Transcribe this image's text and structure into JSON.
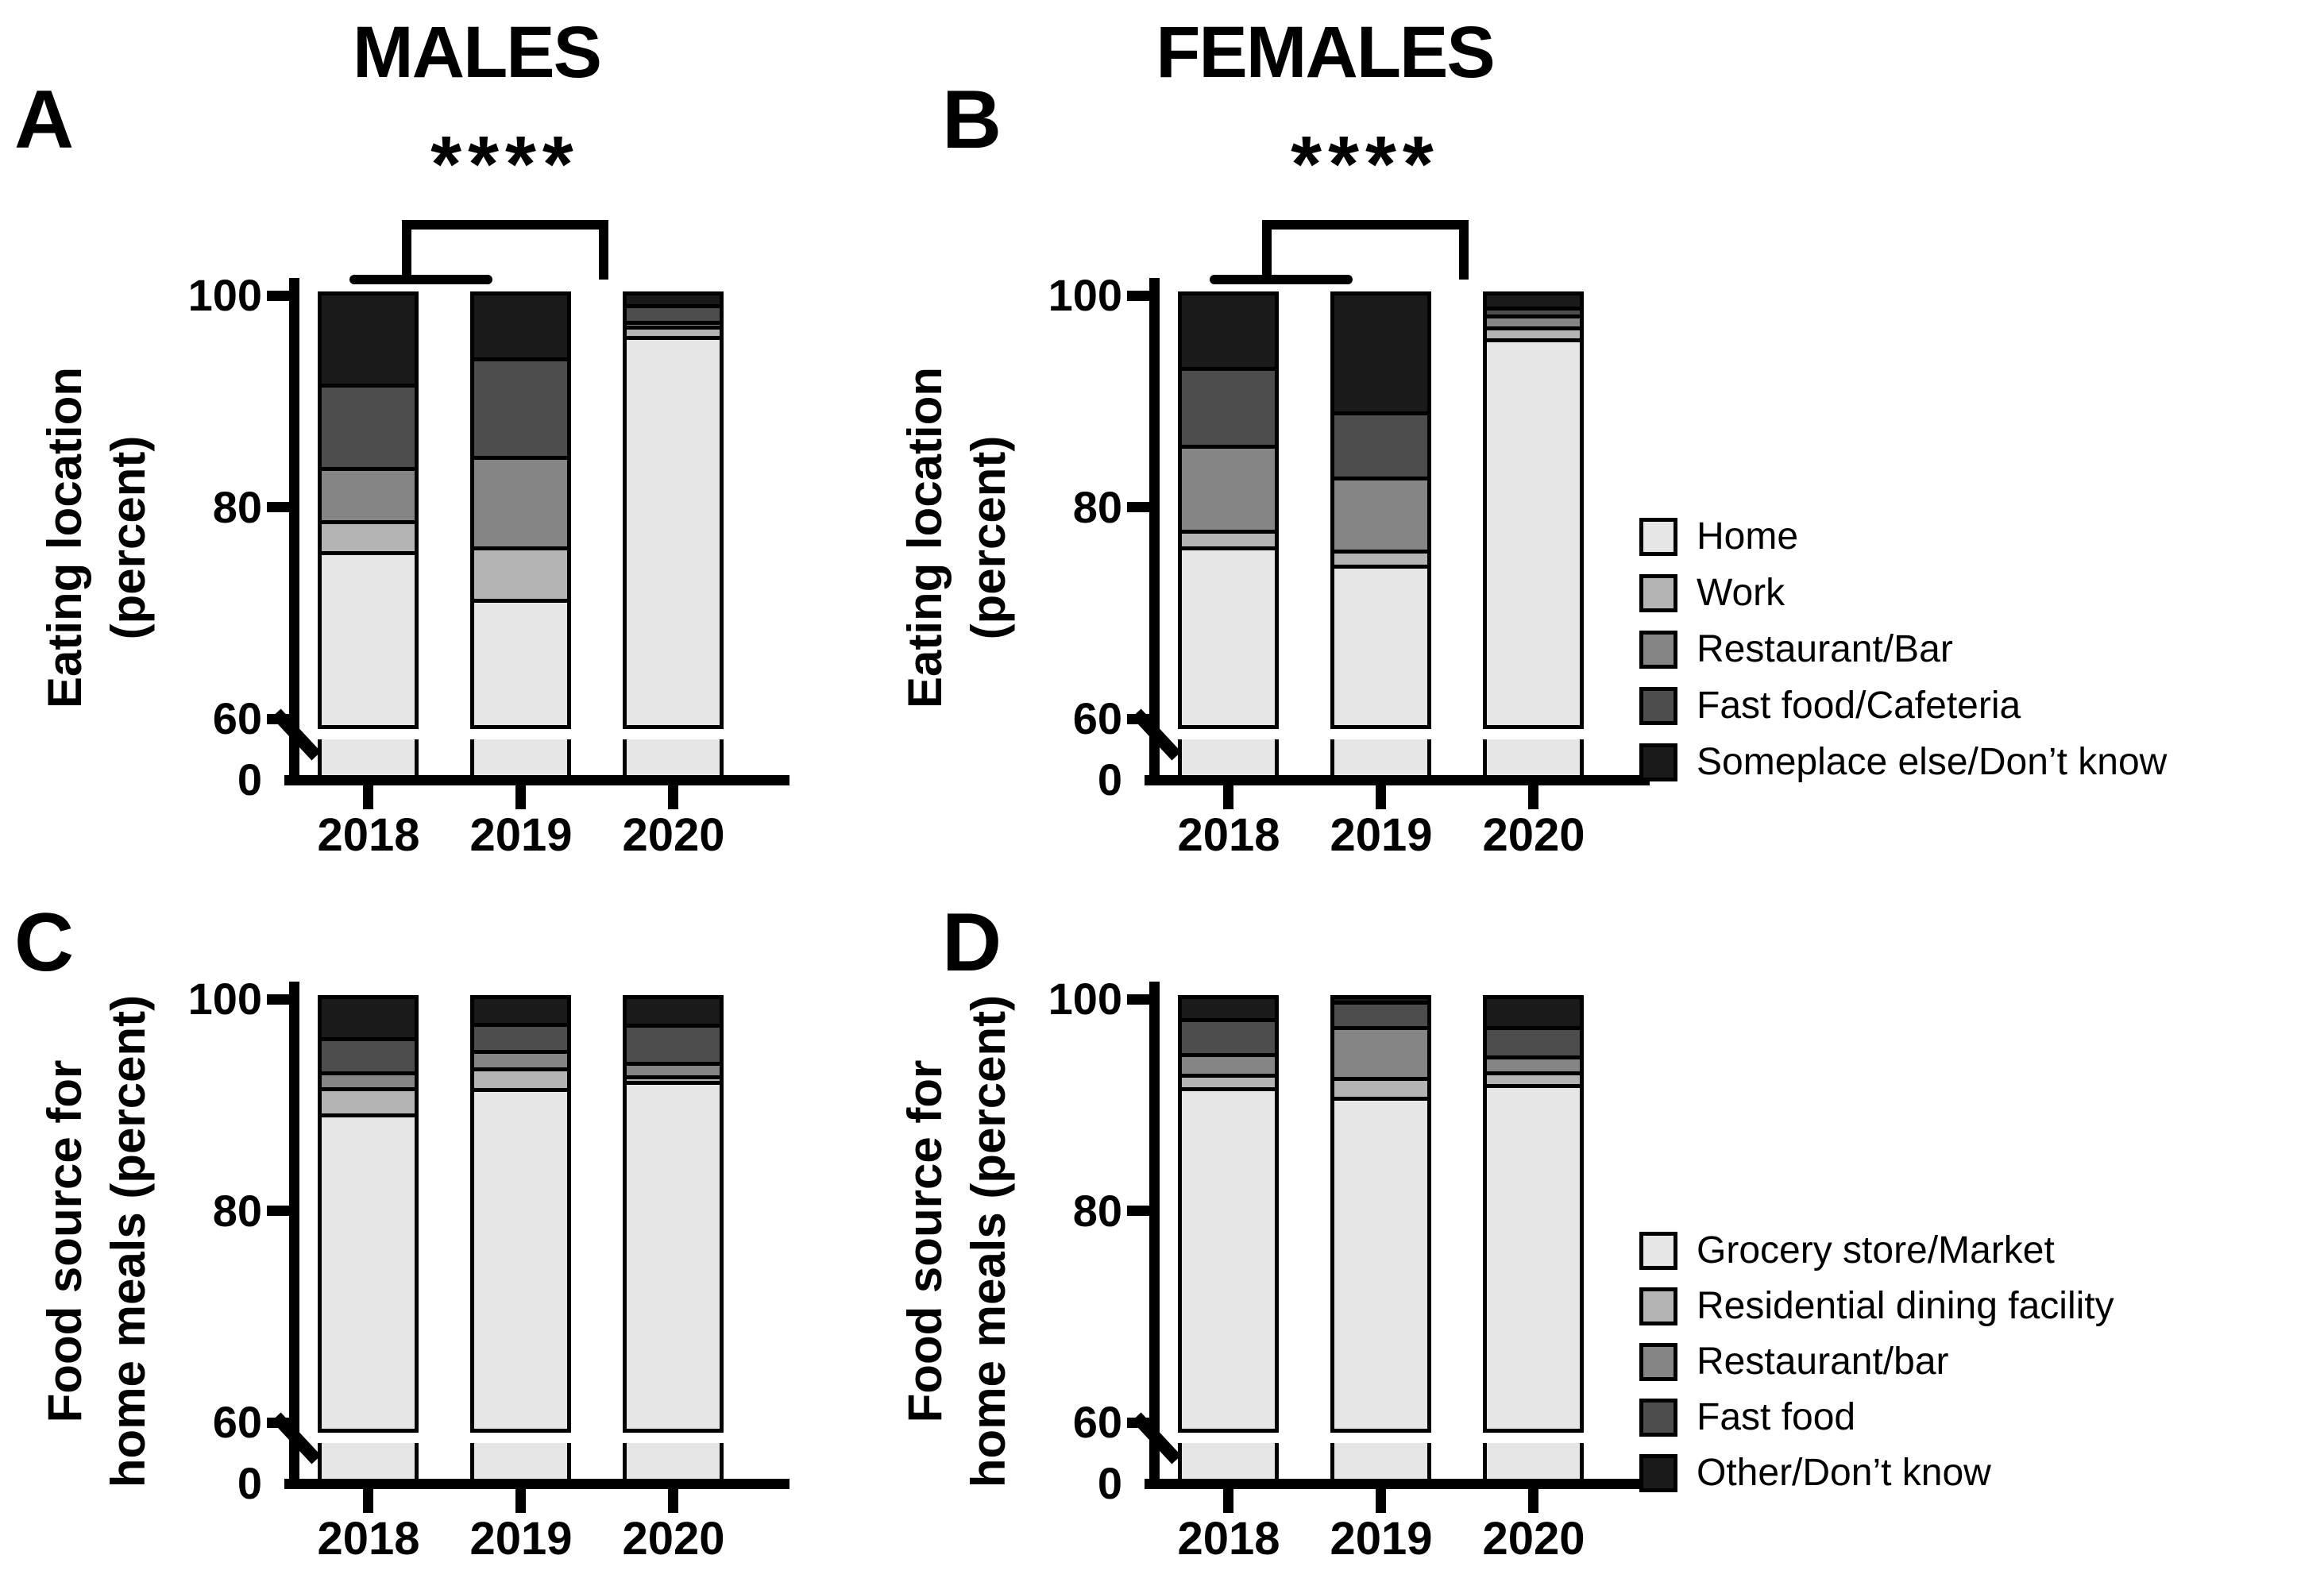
{
  "figure": {
    "group_titles": {
      "males": "MALES",
      "females": "FEMALES"
    }
  },
  "chart_data": [
    {
      "panel": "A",
      "group": "MALES",
      "type": "bar",
      "stacked": true,
      "unit": "percent",
      "ylabel_lines": [
        "Eating location",
        "(percent)"
      ],
      "categories": [
        "2018",
        "2019",
        "2020"
      ],
      "series": [
        {
          "name": "Home",
          "color": "#e6e6e6",
          "values": [
            75.5,
            71.0,
            95.8
          ]
        },
        {
          "name": "Work",
          "color": "#b4b4b4",
          "values": [
            2.9,
            4.9,
            1.0
          ]
        },
        {
          "name": "Restaurant/Bar",
          "color": "#858585",
          "values": [
            5.0,
            8.6,
            0.4
          ]
        },
        {
          "name": "Fast food/Cafeteria",
          "color": "#4d4d4d",
          "values": [
            7.9,
            9.3,
            1.6
          ]
        },
        {
          "name": "Someplace else/Don’t know",
          "color": "#1a1a1a",
          "values": [
            8.7,
            6.2,
            1.2
          ]
        }
      ],
      "yticks": [
        "100",
        "80",
        "60",
        "0"
      ],
      "axis_break_between": [
        0,
        60
      ],
      "grid": false,
      "significance": {
        "label": "****",
        "note": "2018 & 2019 vs 2020"
      }
    },
    {
      "panel": "B",
      "group": "FEMALES",
      "type": "bar",
      "stacked": true,
      "unit": "percent",
      "ylabel_lines": [
        "Eating location",
        "(percent)"
      ],
      "categories": [
        "2018",
        "2019",
        "2020"
      ],
      "series": [
        {
          "name": "Home",
          "color": "#e6e6e6",
          "values": [
            75.9,
            74.2,
            95.6
          ]
        },
        {
          "name": "Work",
          "color": "#b4b4b4",
          "values": [
            1.6,
            1.4,
            1.1
          ]
        },
        {
          "name": "Restaurant/Bar",
          "color": "#858585",
          "values": [
            8.0,
            6.9,
            1.1
          ]
        },
        {
          "name": "Fast food/Cafeteria",
          "color": "#4d4d4d",
          "values": [
            7.4,
            6.2,
            0.8
          ]
        },
        {
          "name": "Someplace else/Don’t know",
          "color": "#1a1a1a",
          "values": [
            7.1,
            11.3,
            1.4
          ]
        }
      ],
      "yticks": [
        "100",
        "80",
        "60",
        "0"
      ],
      "axis_break_between": [
        0,
        60
      ],
      "grid": false,
      "significance": {
        "label": "****",
        "note": "2018 & 2019 vs 2020"
      }
    },
    {
      "panel": "C",
      "group": "MALES",
      "type": "bar",
      "stacked": true,
      "unit": "percent",
      "ylabel_lines": [
        "Food source for",
        "home meals (percent)"
      ],
      "categories": [
        "2018",
        "2019",
        "2020"
      ],
      "series": [
        {
          "name": "Grocery store/Market",
          "color": "#e6e6e6",
          "values": [
            88.8,
            91.2,
            91.9
          ]
        },
        {
          "name": "Residential dining facility",
          "color": "#b4b4b4",
          "values": [
            2.5,
            2.0,
            0.5
          ]
        },
        {
          "name": "Restaurant/bar",
          "color": "#858585",
          "values": [
            1.5,
            1.6,
            1.3
          ]
        },
        {
          "name": "Fast food",
          "color": "#4d4d4d",
          "values": [
            3.2,
            2.6,
            3.6
          ]
        },
        {
          "name": "Other/Don’t know",
          "color": "#1a1a1a",
          "values": [
            4.0,
            2.6,
            2.7
          ]
        }
      ],
      "yticks": [
        "100",
        "80",
        "60",
        "0"
      ],
      "axis_break_between": [
        0,
        60
      ],
      "grid": false,
      "significance": null
    },
    {
      "panel": "D",
      "group": "FEMALES",
      "type": "bar",
      "stacked": true,
      "unit": "percent",
      "ylabel_lines": [
        "Food source for",
        "home meals (percent)"
      ],
      "categories": [
        "2018",
        "2019",
        "2020"
      ],
      "series": [
        {
          "name": "Grocery store/Market",
          "color": "#e6e6e6",
          "values": [
            91.3,
            90.4,
            91.6
          ]
        },
        {
          "name": "Residential dining facility",
          "color": "#b4b4b4",
          "values": [
            1.3,
            1.9,
            1.2
          ]
        },
        {
          "name": "Restaurant/bar",
          "color": "#858585",
          "values": [
            1.9,
            4.8,
            1.5
          ]
        },
        {
          "name": "Fast food",
          "color": "#4d4d4d",
          "values": [
            3.3,
            2.4,
            2.8
          ]
        },
        {
          "name": "Other/Don’t know",
          "color": "#1a1a1a",
          "values": [
            2.2,
            0.5,
            2.9
          ]
        }
      ],
      "yticks": [
        "100",
        "80",
        "60",
        "0"
      ],
      "axis_break_between": [
        0,
        60
      ],
      "grid": false,
      "significance": null
    }
  ],
  "legends": {
    "eating_location": {
      "entries": [
        {
          "label": "Home",
          "color": "#e6e6e6"
        },
        {
          "label": "Work",
          "color": "#b4b4b4"
        },
        {
          "label": "Restaurant/Bar",
          "color": "#858585"
        },
        {
          "label": "Fast food/Cafeteria",
          "color": "#4d4d4d"
        },
        {
          "label": "Someplace else/Don’t know",
          "color": "#1a1a1a"
        }
      ]
    },
    "food_source": {
      "entries": [
        {
          "label": "Grocery store/Market",
          "color": "#e6e6e6"
        },
        {
          "label": "Residential dining facility",
          "color": "#b4b4b4"
        },
        {
          "label": "Restaurant/bar",
          "color": "#858585"
        },
        {
          "label": "Fast food",
          "color": "#4d4d4d"
        },
        {
          "label": "Other/Don’t know",
          "color": "#1a1a1a"
        }
      ]
    }
  }
}
